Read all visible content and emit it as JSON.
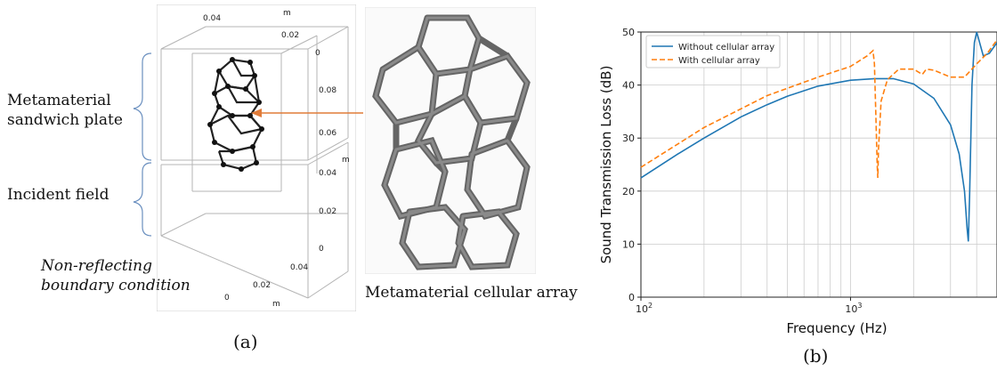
{
  "panel_a": {
    "labels": {
      "sandwich": [
        "Metamaterial",
        "sandwich plate"
      ],
      "incident": "Incident field",
      "boundary": [
        "Non-reflecting",
        "boundary condition"
      ],
      "cellular": "Metamaterial cellular array"
    },
    "axis_ticks": {
      "top": [
        "0.04",
        "0.02",
        "0"
      ],
      "right_upper": [
        "0.08",
        "0.06"
      ],
      "right_lower": [
        "0.04",
        "0.02",
        "0"
      ],
      "bottom": [
        "0.04",
        "0.02",
        "0"
      ],
      "unit": "m"
    },
    "caption": "(a)"
  },
  "panel_b": {
    "caption": "(b)"
  },
  "chart_data": {
    "type": "line",
    "xlabel": "Frequency (Hz)",
    "ylabel": "Sound Transmission Loss (dB)",
    "x_scale": "log",
    "xlim": [
      100,
      5000
    ],
    "ylim": [
      0,
      50
    ],
    "y_ticks": [
      0,
      10,
      20,
      30,
      40,
      50
    ],
    "x_tick_labels": [
      "10^2",
      "10^3"
    ],
    "grid": true,
    "legend_position": "top-left",
    "series": [
      {
        "name": "Without cellular array",
        "color": "#1f77b4",
        "style": "solid",
        "x": [
          100,
          150,
          200,
          300,
          400,
          500,
          700,
          1000,
          1300,
          1600,
          2000,
          2500,
          3000,
          3300,
          3500,
          3600,
          3650,
          3700,
          3800,
          3900,
          4000,
          4300,
          4600,
          5000
        ],
        "values": [
          22.5,
          27.0,
          30.0,
          34.0,
          36.3,
          37.9,
          39.8,
          40.9,
          41.2,
          41.2,
          40.2,
          37.5,
          32.5,
          27.0,
          20.0,
          13.0,
          10.5,
          19.0,
          40.0,
          48.0,
          50.0,
          45.5,
          46.0,
          48.0
        ]
      },
      {
        "name": "With cellular array",
        "color": "#ff7f0e",
        "style": "dashed",
        "x": [
          100,
          200,
          400,
          700,
          1000,
          1200,
          1280,
          1300,
          1320,
          1340,
          1350,
          1360,
          1400,
          1500,
          1700,
          2000,
          2200,
          2300,
          2500,
          3000,
          3500,
          4000,
          4500,
          5000
        ],
        "values": [
          24.5,
          32.0,
          38.0,
          41.5,
          43.5,
          45.5,
          46.5,
          44.0,
          35.0,
          25.0,
          22.5,
          28.0,
          37.0,
          41.0,
          43.0,
          43.0,
          42.0,
          43.0,
          42.8,
          41.5,
          41.5,
          44.0,
          46.0,
          48.5
        ]
      }
    ]
  }
}
